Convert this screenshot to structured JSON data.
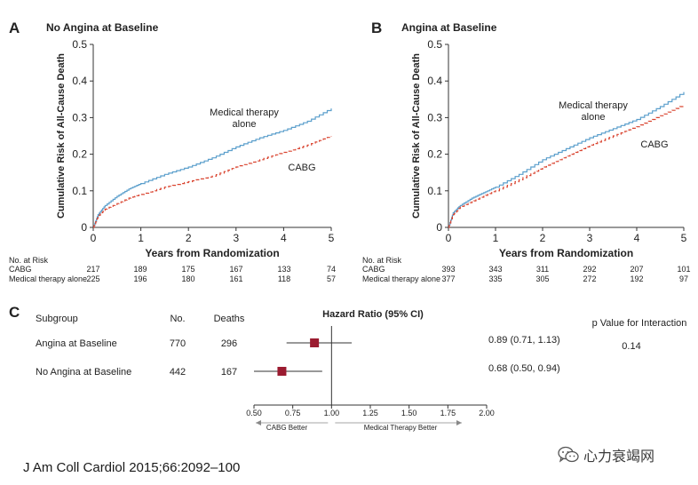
{
  "colors": {
    "medical": "#5b9fcc",
    "cabg": "#d9432f",
    "marker": "#9b1b30",
    "axis": "#333333",
    "text": "#222222"
  },
  "chart_data": [
    {
      "type": "line",
      "panel": "A",
      "title": "No Angina at Baseline",
      "xlabel": "Years from Randomization",
      "ylabel": "Cumulative Risk of All-Cause Death",
      "xlim": [
        0,
        5
      ],
      "ylim": [
        0,
        0.5
      ],
      "xticks": [
        "0",
        "1",
        "2",
        "3",
        "4",
        "5"
      ],
      "yticks": [
        "0",
        "0.1",
        "0.2",
        "0.3",
        "0.4",
        "0.5"
      ],
      "series": [
        {
          "name": "Medical therapy alone",
          "label_lines": [
            "Medical therapy",
            "alone"
          ],
          "style": "solid",
          "x": [
            0,
            0.1,
            0.25,
            0.5,
            0.75,
            1,
            1.5,
            2,
            2.5,
            3,
            3.5,
            4,
            4.5,
            5
          ],
          "y": [
            0,
            0.035,
            0.06,
            0.085,
            0.105,
            0.12,
            0.145,
            0.165,
            0.19,
            0.22,
            0.245,
            0.265,
            0.29,
            0.325
          ]
        },
        {
          "name": "CABG",
          "label_lines": [
            "CABG"
          ],
          "style": "dashed",
          "x": [
            0,
            0.1,
            0.25,
            0.5,
            0.75,
            1,
            1.5,
            2,
            2.5,
            3,
            3.5,
            4,
            4.5,
            5
          ],
          "y": [
            0,
            0.03,
            0.05,
            0.065,
            0.08,
            0.09,
            0.11,
            0.125,
            0.14,
            0.165,
            0.185,
            0.205,
            0.225,
            0.25
          ]
        }
      ],
      "risk_table": {
        "header": "No. at Risk",
        "rows": [
          {
            "label": "CABG",
            "values": [
              "217",
              "189",
              "175",
              "167",
              "133",
              "74"
            ]
          },
          {
            "label": "Medical therapy alone",
            "values": [
              "225",
              "196",
              "180",
              "161",
              "118",
              "57"
            ]
          }
        ]
      }
    },
    {
      "type": "line",
      "panel": "B",
      "title": "Angina at Baseline",
      "xlabel": "Years from Randomization",
      "ylabel": "Cumulative Risk of All-Cause Death",
      "xlim": [
        0,
        5
      ],
      "ylim": [
        0,
        0.5
      ],
      "xticks": [
        "0",
        "1",
        "2",
        "3",
        "4",
        "5"
      ],
      "yticks": [
        "0",
        "0.1",
        "0.2",
        "0.3",
        "0.4",
        "0.5"
      ],
      "series": [
        {
          "name": "Medical therapy alone",
          "label_lines": [
            "Medical therapy",
            "alone"
          ],
          "style": "solid",
          "x": [
            0,
            0.1,
            0.25,
            0.5,
            0.75,
            1,
            1.5,
            2,
            2.5,
            3,
            3.5,
            4,
            4.5,
            5
          ],
          "y": [
            0,
            0.04,
            0.06,
            0.08,
            0.095,
            0.11,
            0.145,
            0.185,
            0.215,
            0.245,
            0.27,
            0.295,
            0.33,
            0.37
          ]
        },
        {
          "name": "CABG",
          "label_lines": [
            "CABG"
          ],
          "style": "dashed",
          "x": [
            0,
            0.1,
            0.25,
            0.5,
            0.75,
            1,
            1.5,
            2,
            2.5,
            3,
            3.5,
            4,
            4.5,
            5
          ],
          "y": [
            0,
            0.035,
            0.055,
            0.07,
            0.085,
            0.1,
            0.13,
            0.165,
            0.195,
            0.225,
            0.25,
            0.275,
            0.305,
            0.335
          ]
        }
      ],
      "risk_table": {
        "header": "No. at Risk",
        "rows": [
          {
            "label": "CABG",
            "values": [
              "393",
              "343",
              "311",
              "292",
              "207",
              "101"
            ]
          },
          {
            "label": "Medical therapy alone",
            "values": [
              "377",
              "335",
              "305",
              "272",
              "192",
              "97"
            ]
          }
        ]
      }
    },
    {
      "type": "forest",
      "panel": "C",
      "headers": {
        "subgroup": "Subgroup",
        "no": "No.",
        "deaths": "Deaths",
        "hr": "Hazard Ratio (95% CI)",
        "p_value": "p Value for Interaction"
      },
      "rows": [
        {
          "subgroup": "Angina at Baseline",
          "no": "770",
          "deaths": "296",
          "hr": 0.89,
          "ci": [
            0.71,
            1.13
          ],
          "hr_text": "0.89 (0.71, 1.13)"
        },
        {
          "subgroup": "No Angina at Baseline",
          "no": "442",
          "deaths": "167",
          "hr": 0.68,
          "ci": [
            0.5,
            0.94
          ],
          "hr_text": "0.68 (0.50, 0.94)"
        }
      ],
      "p_value": "0.14",
      "xlim": [
        0.5,
        2.0
      ],
      "reference": 1.0,
      "xticks": [
        "0.50",
        "0.75",
        "1.00",
        "1.25",
        "1.50",
        "1.75",
        "2.00"
      ],
      "left_label": "CABG Better",
      "right_label": "Medical Therapy Better"
    }
  ],
  "watermark": "心力衰竭网",
  "citation": "J Am Coll Cardiol 2015;66:2092–100"
}
